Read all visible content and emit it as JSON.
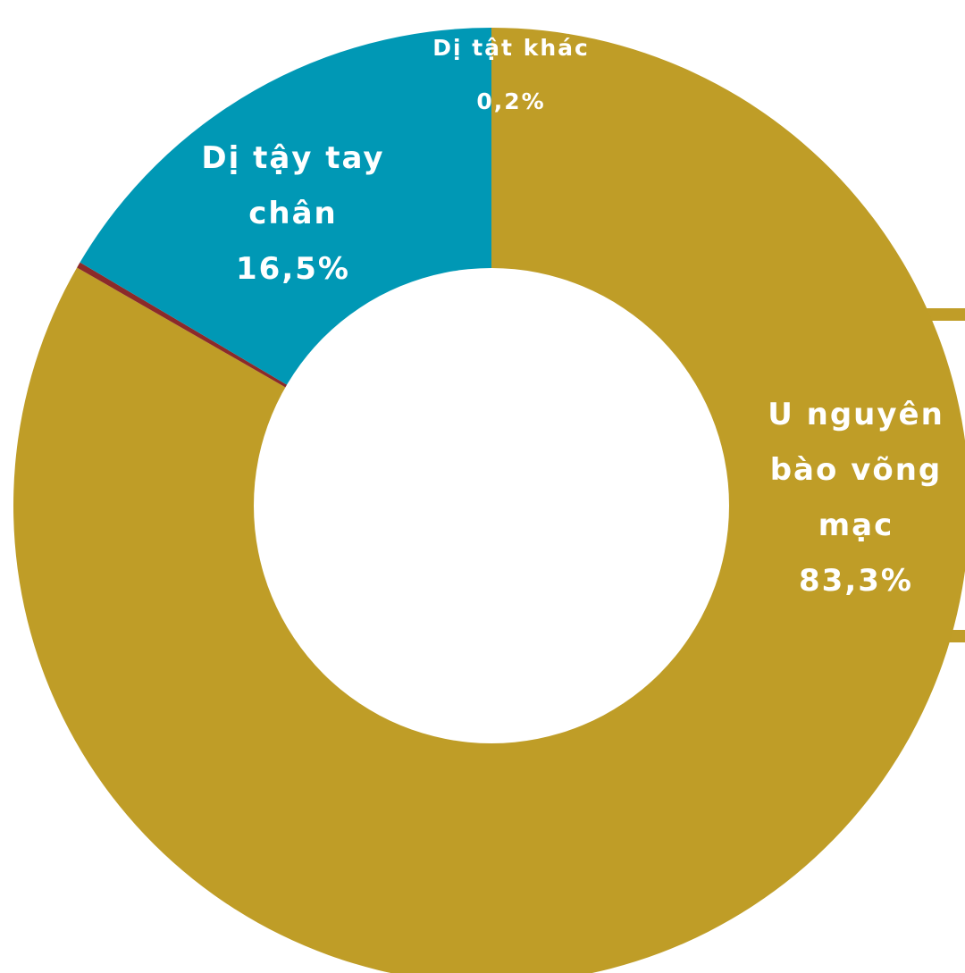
{
  "chart_data": {
    "type": "pie",
    "donut": true,
    "legend": "none",
    "slices": [
      {
        "label_lines": [
          "U nguyên",
          "bào võng",
          "mạc"
        ],
        "value": 83.3,
        "value_label": "83,3%",
        "color": "#bf9d27"
      },
      {
        "label_lines": [
          "Dị tật khác"
        ],
        "value": 0.2,
        "value_label": "0,2%",
        "color": "#8b2a2a"
      },
      {
        "label_lines": [
          "Dị tậy tay",
          "chân"
        ],
        "value": 16.5,
        "value_label": "16,5%",
        "color": "#0098b5"
      }
    ]
  }
}
